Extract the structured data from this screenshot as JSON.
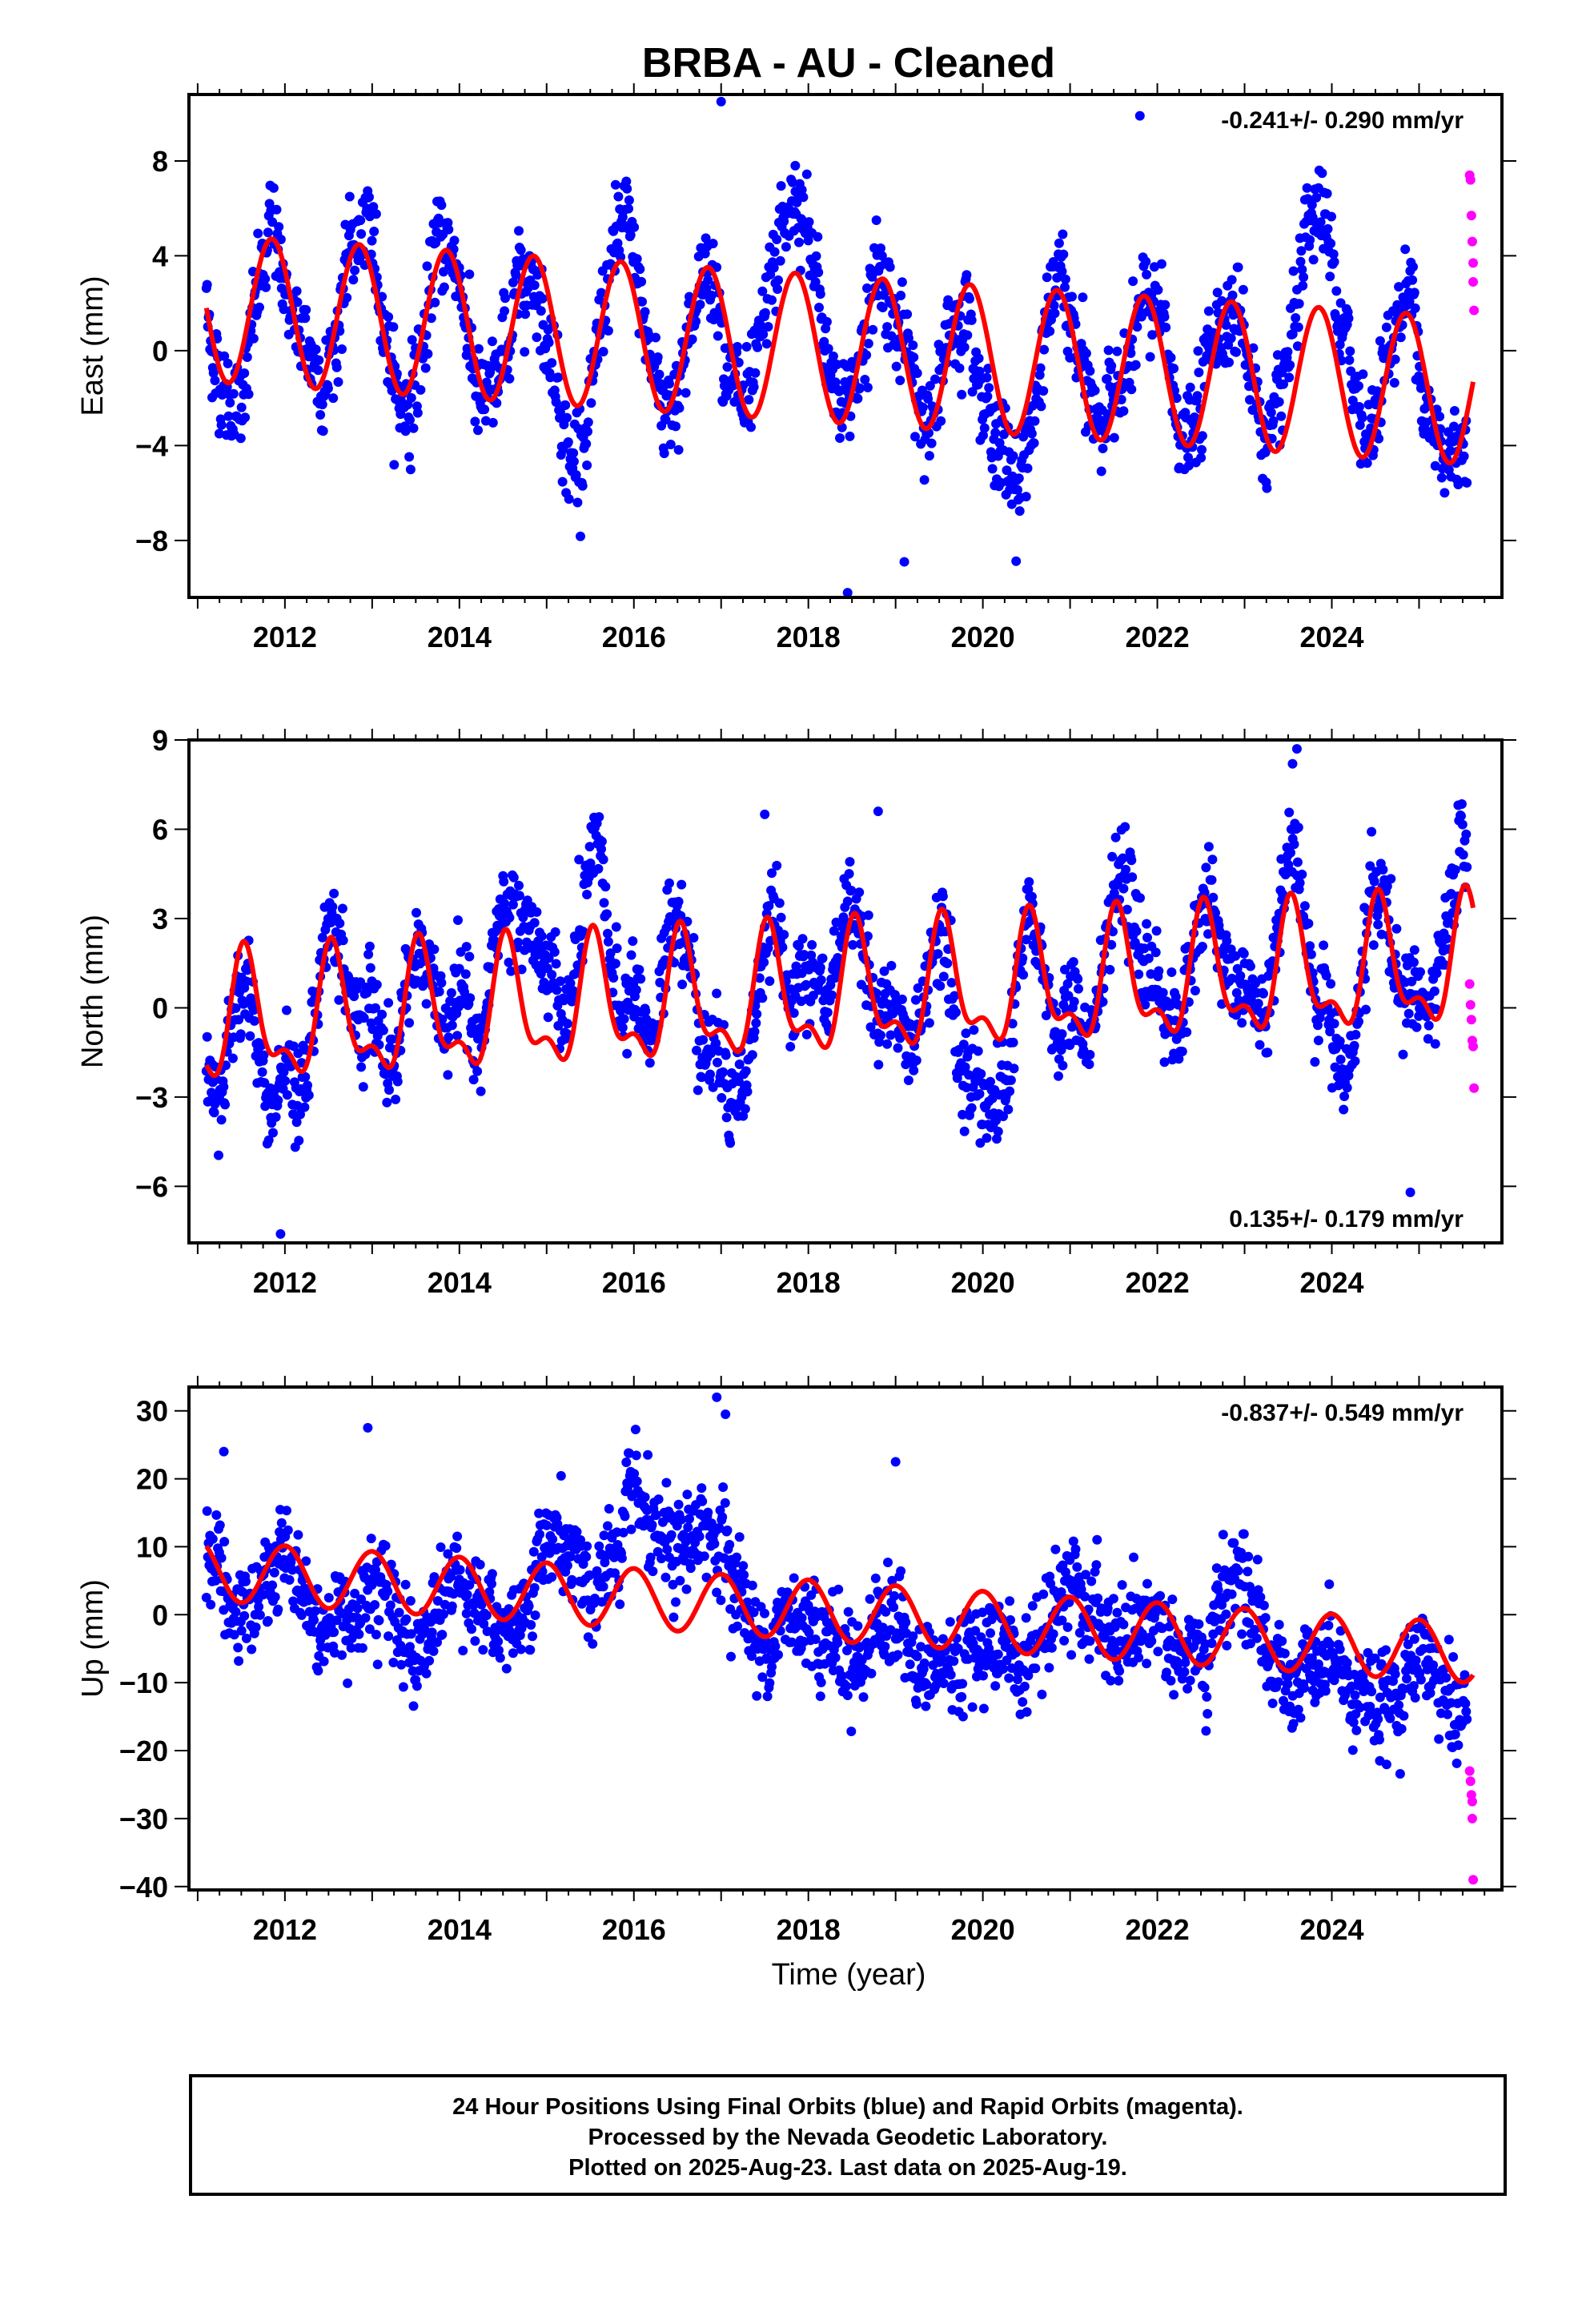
{
  "title": "BRBA  - AU - Cleaned",
  "xlabel": "Time (year)",
  "footer": {
    "line1": "24 Hour Positions Using Final Orbits (blue) and Rapid Orbits (magenta).",
    "line2": "Processed by the Nevada Geodetic Laboratory.",
    "line3": "Plotted on 2025-Aug-23. Last data on 2025-Aug-19."
  },
  "colors": {
    "final": "#0000ff",
    "rapid": "#ff00ff",
    "model": "#ff0000",
    "axes": "#000000"
  },
  "chart_data": [
    {
      "type": "scatter",
      "panel": "east",
      "ylabel": "East (mm)",
      "rate": "-0.241+/- 0.290 mm/yr",
      "rate_position": "top-right",
      "xlim": [
        2010.9,
        2025.95
      ],
      "ylim": [
        -10.4,
        10.8
      ],
      "xticks": [
        2012,
        2014,
        2016,
        2018,
        2020,
        2022,
        2024
      ],
      "yticks": [
        -8,
        -4,
        0,
        4,
        8
      ],
      "grid": false,
      "series": [
        {
          "name": "Final Orbits (blue)",
          "role": "final",
          "color": "#0000ff",
          "x_start": 2011.1,
          "x_end": 2025.55,
          "outliers": [
            [
              2017.0,
              10.5
            ],
            [
              2018.45,
              -10.2
            ],
            [
              2018.78,
              5.5
            ],
            [
              2021.8,
              9.9
            ],
            [
              2017.85,
              7.8
            ],
            [
              2019.1,
              -8.9
            ]
          ]
        },
        {
          "name": "Rapid Orbits (magenta)",
          "role": "rapid",
          "color": "#ff00ff",
          "points": [
            [
              2025.58,
              7.4
            ],
            [
              2025.59,
              7.2
            ],
            [
              2025.6,
              5.7
            ],
            [
              2025.61,
              4.6
            ],
            [
              2025.62,
              3.7
            ],
            [
              2025.62,
              2.9
            ],
            [
              2025.63,
              1.7
            ]
          ]
        },
        {
          "name": "Model fit",
          "role": "model",
          "color": "#ff0000",
          "x_start": 2011.1,
          "x_end": 2025.62,
          "offset": 1.8,
          "slope": -0.241,
          "annual_amp": 3.1,
          "annual_peak": 0.85,
          "semi_amp": 0.0,
          "semi_peak": 0.0
        }
      ]
    },
    {
      "type": "scatter",
      "panel": "north",
      "ylabel": "North (mm)",
      "rate": "0.135+/- 0.179 mm/yr",
      "rate_position": "bottom-right",
      "xlim": [
        2010.9,
        2025.95
      ],
      "ylim": [
        -7.9,
        9.0
      ],
      "xticks": [
        2012,
        2014,
        2016,
        2018,
        2020,
        2022,
        2024
      ],
      "yticks": [
        -6,
        -3,
        0,
        3,
        6,
        9
      ],
      "grid": false,
      "series": [
        {
          "name": "Final Orbits (blue)",
          "role": "final",
          "color": "#0000ff",
          "x_start": 2011.1,
          "x_end": 2025.55,
          "outliers": [
            [
              2023.6,
              8.7
            ],
            [
              2023.55,
              8.2
            ],
            [
              2018.8,
              6.6
            ],
            [
              2017.5,
              6.5
            ],
            [
              2011.95,
              -7.6
            ],
            [
              2024.9,
              -6.2
            ]
          ]
        },
        {
          "name": "Rapid Orbits (magenta)",
          "role": "rapid",
          "color": "#ff00ff",
          "points": [
            [
              2025.58,
              0.8
            ],
            [
              2025.59,
              0.1
            ],
            [
              2025.6,
              -0.4
            ],
            [
              2025.61,
              -1.1
            ],
            [
              2025.62,
              -1.3
            ],
            [
              2025.63,
              -2.7
            ]
          ]
        },
        {
          "name": "Model fit",
          "role": "model",
          "color": "#ff0000",
          "x_start": 2011.1,
          "x_end": 2025.62,
          "offset": -0.6,
          "slope": 0.135,
          "annual_amp": 1.9,
          "annual_peak": 0.55,
          "semi_amp": 0.9,
          "semi_peak": 0.52
        }
      ]
    },
    {
      "type": "scatter",
      "panel": "up",
      "ylabel": "Up (mm)",
      "rate": "-0.837+/- 0.549 mm/yr",
      "rate_position": "top-right",
      "xlim": [
        2010.9,
        2025.95
      ],
      "ylim": [
        -40.5,
        33.5
      ],
      "xticks": [
        2012,
        2014,
        2016,
        2018,
        2020,
        2022,
        2024
      ],
      "yticks": [
        -40,
        -30,
        -20,
        -10,
        0,
        10,
        20,
        30
      ],
      "grid": false,
      "series": [
        {
          "name": "Final Orbits (blue)",
          "role": "final",
          "color": "#0000ff",
          "x_start": 2011.1,
          "x_end": 2025.55,
          "outliers": [
            [
              2016.95,
              32
            ],
            [
              2017.05,
              29.5
            ],
            [
              2012.95,
              27.5
            ],
            [
              2011.3,
              24
            ],
            [
              2019.0,
              22.5
            ],
            [
              2024.55,
              -21.5
            ]
          ]
        },
        {
          "name": "Rapid Orbits (magenta)",
          "role": "rapid",
          "color": "#ff00ff",
          "points": [
            [
              2025.58,
              -23
            ],
            [
              2025.59,
              -24.5
            ],
            [
              2025.6,
              -26.5
            ],
            [
              2025.61,
              -27.5
            ],
            [
              2025.61,
              -30
            ],
            [
              2025.62,
              -39
            ]
          ]
        },
        {
          "name": "Model fit",
          "role": "model",
          "color": "#ff0000",
          "x_start": 2011.1,
          "x_end": 2025.62,
          "offset": 6.5,
          "slope": -0.837,
          "annual_amp": 4.4,
          "annual_peak": 0.0,
          "semi_amp": 0.0,
          "semi_peak": 0.0
        }
      ]
    }
  ]
}
